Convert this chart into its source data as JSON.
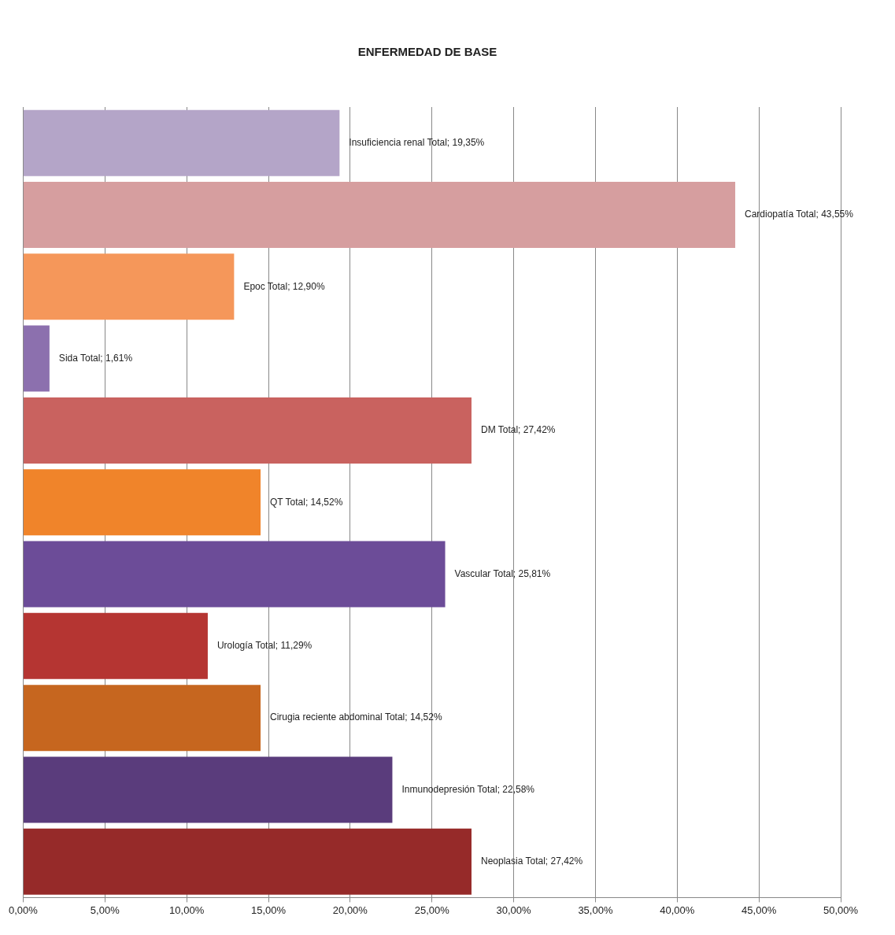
{
  "chart_data": {
    "type": "bar",
    "orientation": "horizontal",
    "title": "ENFERMEDAD DE BASE",
    "categories": [
      null,
      null,
      null,
      null,
      null,
      null,
      null,
      null,
      null,
      null,
      null
    ],
    "values": [
      19.35,
      43.55,
      12.9,
      1.61,
      27.42,
      14.52,
      25.81,
      11.29,
      14.52,
      22.58,
      27.42
    ],
    "colors": [
      "#b4a5c8",
      "#d69e9f",
      "#f5975a",
      "#8c70ae",
      "#c9625f",
      "#f0842a",
      "#6c4c98",
      "#b53532",
      "#c6661f",
      "#5a3c7c",
      "#962a29"
    ],
    "value_labels": [
      "Insuficiencia renal Total; 19,35%",
      "Cardiopatía Total; 43,55%",
      "Epoc Total; 12,90%",
      "Sida Total; 1,61%",
      "DM Total; 27,42%",
      "QT Total; 14,52%",
      "Vascular Total; 25,81%",
      "Urología Total; 11,29%",
      "Cirugia reciente abdominal Total; 14,52%",
      "Inmunodepresión Total; 22,58%",
      "Neoplasia Total; 27,42%"
    ],
    "xlim": [
      0,
      50
    ],
    "xticks": [
      {
        "value": 0,
        "label": "0,00%"
      },
      {
        "value": 5,
        "label": "5,00%"
      },
      {
        "value": 10,
        "label": "10,00%"
      },
      {
        "value": 15,
        "label": "15,00%"
      },
      {
        "value": 20,
        "label": "20,00%"
      },
      {
        "value": 25,
        "label": "25,00%"
      },
      {
        "value": 30,
        "label": "30,00%"
      },
      {
        "value": 35,
        "label": "35,00%"
      },
      {
        "value": 40,
        "label": "40,00%"
      },
      {
        "value": 45,
        "label": "45,00%"
      },
      {
        "value": 50,
        "label": "50,00%"
      }
    ],
    "tick_labels": "x",
    "grid": "x",
    "legend": false
  }
}
